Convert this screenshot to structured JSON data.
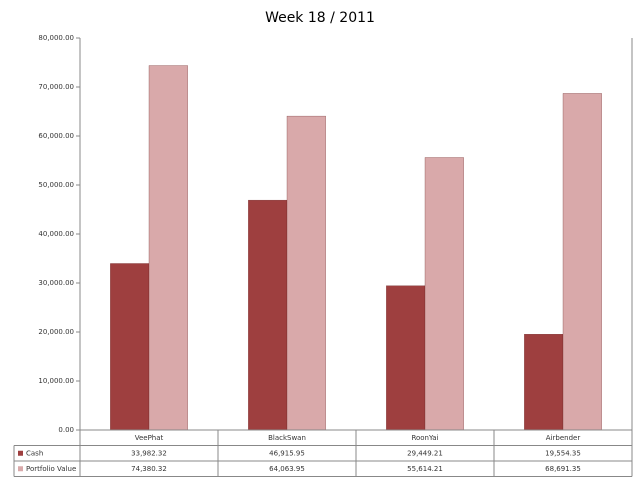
{
  "chart_data": {
    "type": "bar",
    "title": "Week 18 / 2011",
    "categories": [
      "VeePhat",
      "BlackSwan",
      "RoonYai",
      "Airbender"
    ],
    "series": [
      {
        "name": "Cash",
        "color": "#9e3f3f",
        "values": [
          33982.32,
          46915.95,
          29449.21,
          19554.35
        ],
        "value_labels": [
          "33,982.32",
          "46,915.95",
          "29,449.21",
          "19,554.35"
        ]
      },
      {
        "name": "Portfolio Value",
        "color": "#d9a9aa",
        "values": [
          74380.32,
          64063.95,
          55614.21,
          68691.35
        ],
        "value_labels": [
          "74,380.32",
          "64,063.95",
          "55,614.21",
          "68,691.35"
        ]
      }
    ],
    "ylim": [
      0,
      80000
    ],
    "yticks": [
      {
        "value": 0,
        "label": "0.00"
      },
      {
        "value": 10000,
        "label": "10,000.00"
      },
      {
        "value": 20000,
        "label": "20,000.00"
      },
      {
        "value": 30000,
        "label": "30,000.00"
      },
      {
        "value": 40000,
        "label": "40,000.00"
      },
      {
        "value": 50000,
        "label": "50,000.00"
      },
      {
        "value": 60000,
        "label": "60,000.00"
      },
      {
        "value": 70000,
        "label": "70,000.00"
      },
      {
        "value": 80000,
        "label": "80,000.00"
      }
    ],
    "grid": false
  }
}
